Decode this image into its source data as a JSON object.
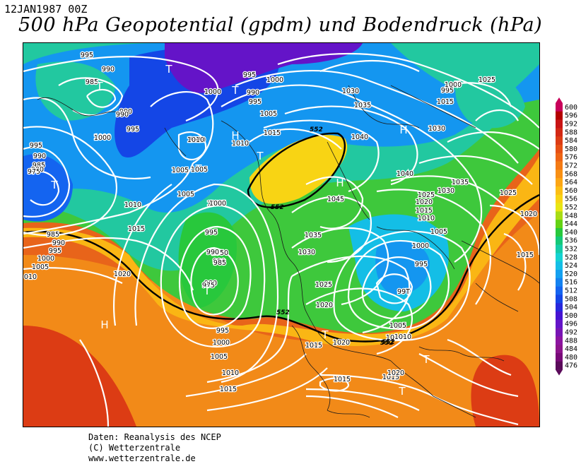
{
  "header": {
    "date": "12JAN1987 00Z",
    "title": "500 hPa Geopotential (gpdm) und Bodendruck (hPa)"
  },
  "legend": {
    "values": [
      600,
      596,
      592,
      588,
      584,
      580,
      576,
      572,
      568,
      564,
      560,
      556,
      552,
      548,
      544,
      540,
      536,
      532,
      528,
      524,
      520,
      516,
      512,
      508,
      504,
      500,
      496,
      492,
      488,
      484,
      480,
      476
    ],
    "colors": [
      "#c8005a",
      "#b40000",
      "#c81414",
      "#d22814",
      "#dc3c14",
      "#e65014",
      "#ee6414",
      "#f47a14",
      "#f89014",
      "#fca614",
      "#fcbe14",
      "#f8d414",
      "#e8e614",
      "#a8dc14",
      "#64d214",
      "#28c83c",
      "#14c878",
      "#14cca8",
      "#14d2d2",
      "#14bee6",
      "#14a0f0",
      "#1482f0",
      "#1464f0",
      "#1446e6",
      "#2828dc",
      "#4614d2",
      "#6414c8",
      "#7814b4",
      "#8c14a0",
      "#8c148c",
      "#780a78",
      "#5a0a5a"
    ]
  },
  "map": {
    "pressure_labels": [
      "995",
      "990",
      "985",
      "990",
      "T",
      "T",
      "990",
      "995",
      "1000",
      "T",
      "1000",
      "995",
      "1010",
      "1005",
      "H",
      "1005",
      "T",
      "995",
      "990",
      "985",
      "980",
      "975",
      "T",
      "1000",
      "1005",
      "1010",
      "1015",
      "985",
      "990",
      "995",
      "1000",
      "1005",
      "010",
      "1020",
      "H",
      "1005",
      "1000",
      "995",
      "990",
      "985",
      "980",
      "975",
      "T",
      "995",
      "1000",
      "1005",
      "1010",
      "1015",
      "990",
      "995",
      "1000",
      "1005",
      "1015",
      "T",
      "1010",
      "1005",
      "1000",
      "1000",
      "995",
      "990",
      "1035",
      "1030",
      "1025",
      "1020",
      "1045",
      "H",
      "1040",
      "H",
      "1040",
      "1035",
      "1030",
      "1025",
      "1020",
      "1015",
      "1010",
      "1005",
      "1000",
      "995",
      "99T",
      "1005",
      "1010",
      "1010",
      "1015",
      "T",
      "1020",
      "1015",
      "T",
      "1015",
      "T",
      "1020",
      "995",
      "1000",
      "T",
      "1025",
      "1015",
      "1030",
      "1035",
      "1030",
      "1025",
      "1020",
      "1015",
      "1010"
    ],
    "height_labels": [
      "552",
      "552",
      "552",
      "552",
      "552"
    ]
  },
  "footer": {
    "line1": "Daten: Reanalysis des NCEP",
    "line2": "(C) Wetterzentrale",
    "line3": "www.wetterzentrale.de"
  }
}
